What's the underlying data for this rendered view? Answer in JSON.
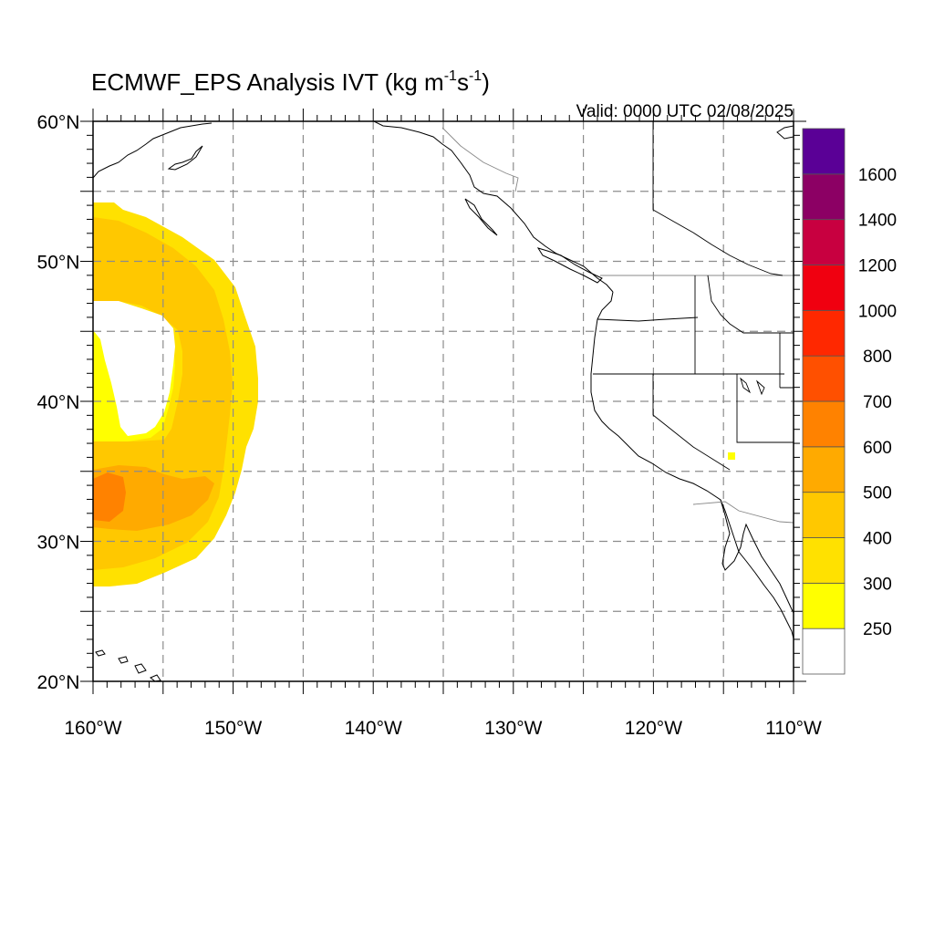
{
  "header": {
    "title_main": "ECMWF_EPS Analysis IVT (kg m",
    "title_sup1": "-1",
    "title_mid": "s",
    "title_sup2": "-1",
    "title_end": ")",
    "valid": "Valid: 0000 UTC 02/08/2025"
  },
  "map": {
    "lon_range": [
      -160,
      -110
    ],
    "lat_range": [
      20,
      60
    ],
    "grid_lon": [
      -155,
      -150,
      -145,
      -140,
      -135,
      -130,
      -125,
      -120,
      -115
    ],
    "grid_lat": [
      25,
      30,
      35,
      40,
      45,
      50,
      55
    ],
    "lon_labels": [
      {
        "lon": -160,
        "text": "160°W"
      },
      {
        "lon": -150,
        "text": "150°W"
      },
      {
        "lon": -140,
        "text": "140°W"
      },
      {
        "lon": -130,
        "text": "130°W"
      },
      {
        "lon": -120,
        "text": "120°W"
      },
      {
        "lon": -110,
        "text": "110°W"
      }
    ],
    "lat_labels": [
      {
        "lat": 60,
        "text": "60°N"
      },
      {
        "lat": 50,
        "text": "50°N"
      },
      {
        "lat": 40,
        "text": "40°N"
      },
      {
        "lat": 30,
        "text": "30°N"
      },
      {
        "lat": 20,
        "text": "20°N"
      }
    ]
  },
  "colorbar": {
    "levels": [
      "250",
      "300",
      "400",
      "500",
      "600",
      "700",
      "800",
      "1000",
      "1200",
      "1400",
      "1600"
    ],
    "colors": [
      "#ffffff",
      "#ffff00",
      "#ffe100",
      "#ffc800",
      "#ffaa00",
      "#ff8200",
      "#ff5000",
      "#ff2800",
      "#f00010",
      "#c80040",
      "#8c0064",
      "#5a0096"
    ]
  },
  "chart_data": {
    "type": "heatmap",
    "variable": "IVT",
    "units": "kg m-1 s-1",
    "cells": [
      {
        "lon_min": -160,
        "lon_max": -155,
        "lat_min": 48,
        "lat_max": 54,
        "level": 300
      },
      {
        "lon_min": -155,
        "lon_max": -151,
        "lat_min": 45,
        "lat_max": 53,
        "level": 400
      },
      {
        "lon_min": -151,
        "lon_max": -148,
        "lat_min": 35,
        "lat_max": 47,
        "level": 300
      },
      {
        "lon_min": -153,
        "lon_max": -150,
        "lat_min": 36,
        "lat_max": 46,
        "level": 400
      },
      {
        "lon_min": -160,
        "lon_max": -157,
        "lat_min": 37,
        "lat_max": 44,
        "level": 250
      },
      {
        "lon_min": -160,
        "lon_max": -151,
        "lat_min": 28,
        "lat_max": 36,
        "level": 400
      },
      {
        "lon_min": -160,
        "lon_max": -157,
        "lat_min": 31,
        "lat_max": 35,
        "level": 500
      },
      {
        "lon_min": -115,
        "lon_max": -114.5,
        "lat_min": 36,
        "lat_max": 36.5,
        "level": 250
      }
    ]
  }
}
